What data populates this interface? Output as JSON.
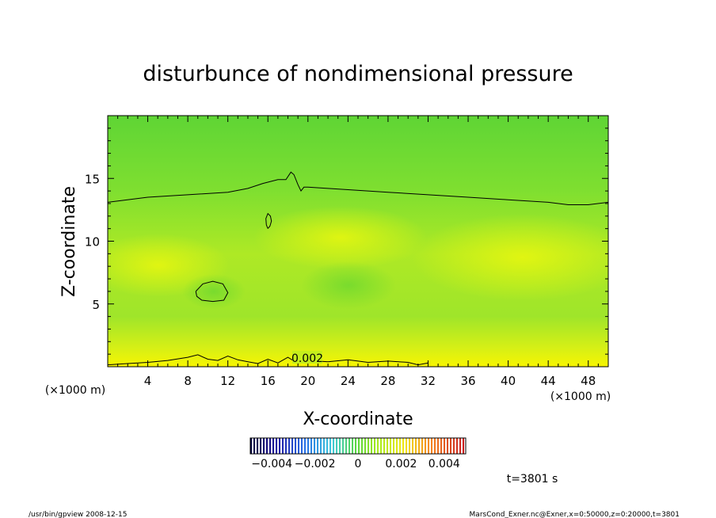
{
  "chart_data": {
    "type": "heatmap",
    "title": "disturbunce of nondimensional pressure",
    "xlabel": "X-coordinate",
    "ylabel": "Z-coordinate",
    "x_unit": "(×1000 m)",
    "z_unit": "(×1000 m)",
    "xlim": [
      0,
      50
    ],
    "ylim": [
      0,
      20
    ],
    "x_ticks": [
      4,
      8,
      12,
      16,
      20,
      24,
      28,
      32,
      36,
      40,
      44,
      48
    ],
    "y_ticks": [
      5,
      10,
      15
    ],
    "contour_label": "0.002",
    "colorbar_labels": [
      "−0.004",
      "−0.002",
      "0",
      "0.002",
      "0.004"
    ],
    "colorbar_range": [
      -0.005,
      0.005
    ],
    "time_label": "t=3801 s",
    "footer_left": "/usr/bin/gpview   2008-12-15",
    "footer_right": "MarsCond_Exner.nc@Exner,x=0:50000,z=0:20000,t=3801",
    "contour_lines": [
      {
        "x": [
          0,
          4,
          8,
          12,
          14,
          15.5,
          17,
          17.8,
          18.3,
          18.6,
          19.0,
          19.3,
          19.6,
          20,
          24,
          28,
          32,
          36,
          40,
          44,
          46,
          48,
          50
        ],
        "z": [
          13.1,
          13.5,
          13.7,
          13.9,
          14.2,
          14.6,
          14.9,
          14.9,
          15.5,
          15.3,
          14.5,
          14.0,
          14.3,
          14.3,
          14.1,
          13.9,
          13.7,
          13.5,
          13.3,
          13.1,
          12.9,
          12.9,
          13.1
        ]
      },
      {
        "x": [
          0,
          2,
          4,
          6,
          8,
          9,
          10,
          11,
          12,
          13,
          14,
          15,
          16,
          17,
          18,
          19,
          20,
          22,
          24,
          26,
          28,
          30,
          31,
          32
        ],
        "z": [
          0.15,
          0.25,
          0.35,
          0.5,
          0.75,
          0.95,
          0.6,
          0.5,
          0.85,
          0.55,
          0.4,
          0.25,
          0.6,
          0.3,
          0.75,
          0.25,
          0.5,
          0.4,
          0.55,
          0.35,
          0.45,
          0.35,
          0.15,
          0.3
        ]
      },
      {
        "x": [
          16,
          16.2,
          16.35,
          16.25,
          16.0,
          15.8,
          15.85,
          16
        ],
        "z": [
          11.0,
          11.2,
          11.6,
          12.0,
          12.2,
          11.8,
          11.3,
          11.0
        ]
      },
      {
        "x": [
          8.8,
          9.5,
          10.5,
          11.5,
          12.0,
          11.6,
          10.5,
          9.4,
          8.9,
          8.8
        ],
        "z": [
          6.0,
          6.6,
          6.8,
          6.6,
          5.9,
          5.3,
          5.2,
          5.3,
          5.6,
          6.0
        ]
      }
    ]
  }
}
